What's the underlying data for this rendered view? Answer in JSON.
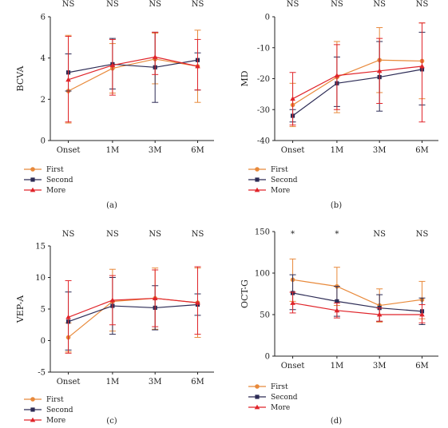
{
  "colors": {
    "first": "#e8893a",
    "second": "#2c2b55",
    "more": "#e0242a"
  },
  "legend": [
    "First",
    "Second",
    "More"
  ],
  "chart_data": [
    {
      "type": "line",
      "panel_label": "(a)",
      "ylabel": "BCVA",
      "categories": [
        "Onset",
        "1M",
        "3M",
        "6M"
      ],
      "ylim": [
        0,
        6
      ],
      "yticks": [
        0,
        2,
        4,
        6
      ],
      "significance": [
        "NS",
        "NS",
        "NS",
        "NS"
      ],
      "series": [
        {
          "name": "First",
          "values": [
            2.4,
            3.5,
            3.95,
            3.6
          ],
          "err_low": [
            0.85,
            2.3,
            2.75,
            1.85
          ],
          "err_high": [
            5.1,
            4.7,
            5.2,
            5.35
          ]
        },
        {
          "name": "Second",
          "values": [
            3.3,
            3.7,
            3.55,
            3.9
          ],
          "err_low": [
            2.4,
            2.5,
            1.85,
            2.45
          ],
          "err_high": [
            4.2,
            4.95,
            5.25,
            4.25
          ]
        },
        {
          "name": "More",
          "values": [
            2.95,
            3.65,
            4.05,
            3.6
          ],
          "err_low": [
            0.9,
            2.2,
            3.2,
            2.45
          ],
          "err_high": [
            5.05,
            4.9,
            5.25,
            4.9
          ]
        }
      ]
    },
    {
      "type": "line",
      "panel_label": "(b)",
      "ylabel": "MD",
      "categories": [
        "Onset",
        "1M",
        "3M",
        "6M"
      ],
      "ylim": [
        -40,
        0
      ],
      "yticks": [
        -40,
        -30,
        -20,
        -10,
        0
      ],
      "significance": [
        "NS",
        "NS",
        "NS",
        "NS"
      ],
      "series": [
        {
          "name": "First",
          "values": [
            -28.5,
            -19.5,
            -14,
            -14.3
          ],
          "err_low": [
            -35.5,
            -31,
            -24.5,
            -26.5
          ],
          "err_high": [
            -21.5,
            -8,
            -3.5,
            -2
          ]
        },
        {
          "name": "Second",
          "values": [
            -32,
            -21.5,
            -19.5,
            -17
          ],
          "err_low": [
            -34,
            -29,
            -30.5,
            -28.5
          ],
          "err_high": [
            -30,
            -13,
            -8,
            -5
          ]
        },
        {
          "name": "More",
          "values": [
            -26.5,
            -19,
            -17.5,
            -16
          ],
          "err_low": [
            -35,
            -30,
            -28,
            -34
          ],
          "err_high": [
            -18,
            -9,
            -7,
            -2
          ]
        }
      ]
    },
    {
      "type": "line",
      "panel_label": "(c)",
      "ylabel": "VEP-A",
      "categories": [
        "Onset",
        "1M",
        "3M",
        "6M"
      ],
      "ylim": [
        -5,
        15
      ],
      "yticks": [
        -5,
        0,
        5,
        10,
        15
      ],
      "significance": [
        "NS",
        "NS",
        "NS",
        "NS"
      ],
      "series": [
        {
          "name": "First",
          "values": [
            0.5,
            6.2,
            6.7,
            6
          ],
          "err_low": [
            -1.8,
            1.5,
            1.8,
            0.5
          ],
          "err_high": [
            2.8,
            11.3,
            11.5,
            11.5
          ]
        },
        {
          "name": "Second",
          "values": [
            3,
            5.5,
            5.2,
            5.7
          ],
          "err_low": [
            -1.5,
            1,
            1.7,
            4
          ],
          "err_high": [
            7.7,
            10,
            8.7,
            7.4
          ]
        },
        {
          "name": "More",
          "values": [
            3.7,
            6.4,
            6.7,
            6
          ],
          "err_low": [
            -2,
            2.5,
            2.2,
            1
          ],
          "err_high": [
            9.5,
            10.3,
            11.2,
            11.7
          ]
        }
      ]
    },
    {
      "type": "line",
      "panel_label": "(d)",
      "ylabel": "OCT-G",
      "categories": [
        "Onset",
        "1M",
        "3M",
        "6M"
      ],
      "ylim": [
        0,
        150
      ],
      "yticks": [
        0,
        50,
        100,
        150
      ],
      "significance": [
        "*",
        "*",
        "NS",
        "NS"
      ],
      "series": [
        {
          "name": "First",
          "values": [
            92,
            84,
            61,
            68
          ],
          "err_low": [
            66,
            61,
            41,
            45
          ],
          "err_high": [
            117,
            107,
            81,
            90
          ]
        },
        {
          "name": "Second",
          "values": [
            76,
            66,
            58,
            54
          ],
          "err_low": [
            56,
            48,
            42,
            38
          ],
          "err_high": [
            98,
            84,
            74,
            70
          ]
        },
        {
          "name": "More",
          "values": [
            64,
            55,
            50,
            50
          ],
          "err_low": [
            52,
            46,
            42,
            40
          ],
          "err_high": [
            77,
            64,
            58,
            62
          ]
        }
      ]
    }
  ]
}
